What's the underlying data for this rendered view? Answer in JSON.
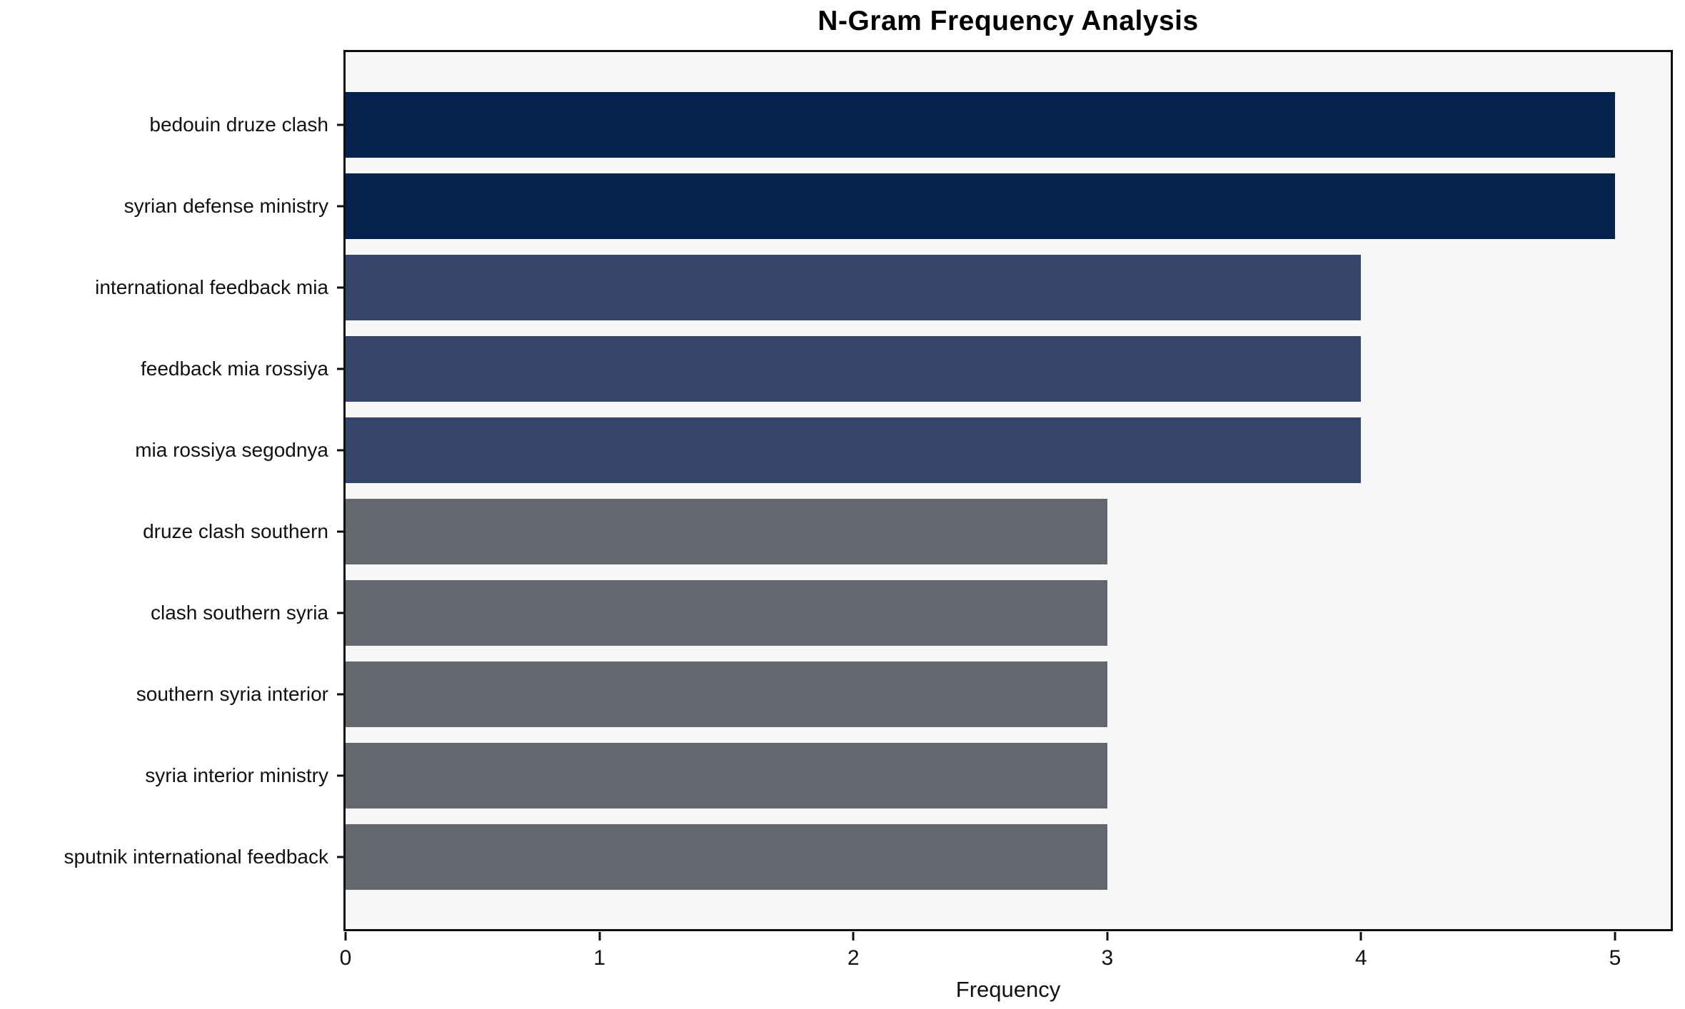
{
  "chart_data": {
    "type": "bar",
    "orientation": "horizontal",
    "title": "N-Gram Frequency Analysis",
    "xlabel": "Frequency",
    "ylabel": "",
    "categories": [
      "bedouin druze clash",
      "syrian defense ministry",
      "international feedback mia",
      "feedback mia rossiya",
      "mia rossiya segodnya",
      "druze clash southern",
      "clash southern syria",
      "southern syria interior",
      "syria interior ministry",
      "sputnik international feedback"
    ],
    "values": [
      5,
      5,
      4,
      4,
      4,
      3,
      3,
      3,
      3,
      3
    ],
    "bar_colors": [
      "#03234c",
      "#03234c",
      "#36456c",
      "#36456c",
      "#36456c",
      "#65696f",
      "#65696f",
      "#65696f",
      "#65696f",
      "#65696f"
    ],
    "x_ticks": [
      0,
      1,
      2,
      3,
      4,
      5
    ],
    "xlim": [
      0,
      5.22
    ],
    "grid": false,
    "legend": null,
    "colors": {
      "plot_background": "#f7f7f7",
      "figure_background": "#ffffff",
      "axis_spine": "#0d0d0d",
      "text": "#111111"
    }
  }
}
